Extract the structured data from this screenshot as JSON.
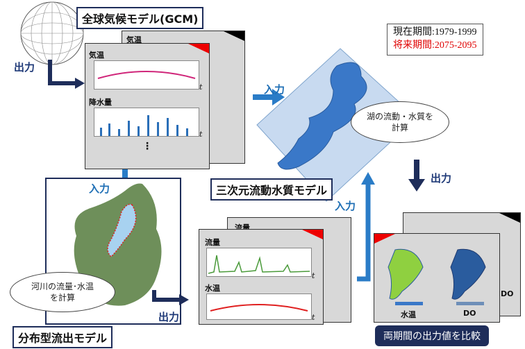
{
  "period": {
    "current": "現在期間:1979-1999",
    "future": "将来期間:2075-2095",
    "current_color": "#111111",
    "future_color": "#e00000"
  },
  "gcm": {
    "title": "全球気候モデル(GCM)"
  },
  "arrows": {
    "output": "出力",
    "input": "入力"
  },
  "gcm_panel": {
    "back_title": "気温",
    "temp_title": "気温",
    "precip_title": "降水量",
    "ellipsis": "⋮",
    "t_axis": "t"
  },
  "lake_model": {
    "title": "三次元流動水質モデル",
    "oval": "湖の流動・水質を\n計算"
  },
  "basin_model": {
    "title": "分布型流出モデル",
    "oval": "河川の流量･水温\nを計算"
  },
  "river_panel": {
    "back_title": "流量",
    "flow_title": "流量",
    "temp_title": "水温",
    "t_axis": "t"
  },
  "result_panel": {
    "temp_label": "水温",
    "do_label": "DO",
    "back_do_label": "DO"
  },
  "compare": {
    "label": "両期間の出力値を比較"
  },
  "colors": {
    "navy": "#1e2d5a",
    "arrow_blue": "#1f6fb5",
    "lake_blue": "#3a78c8",
    "basin_green": "#6e8f5a",
    "temp_line": "#d0267a",
    "precip_bar": "#2a6fb8",
    "flow_line": "#4a9a3a",
    "water_temp_line": "#e02020"
  }
}
